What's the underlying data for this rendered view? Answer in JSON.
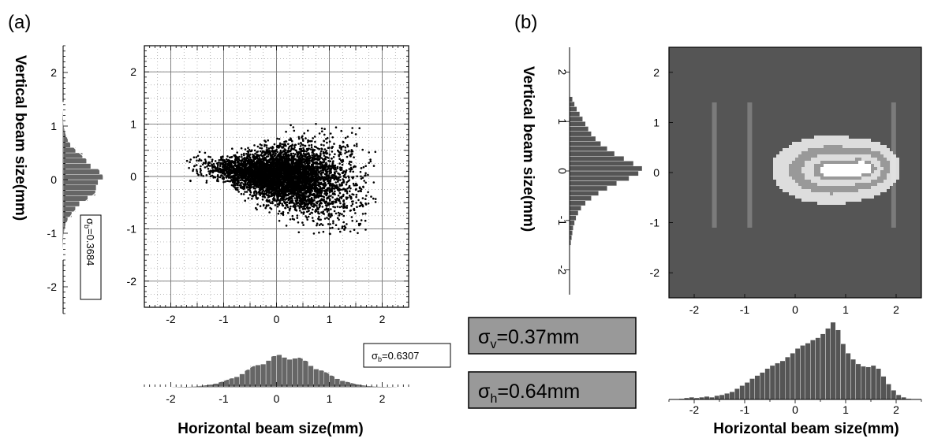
{
  "panel_a": {
    "label": "(a)",
    "ylabel": "Vertical beam size(mm)",
    "xlabel": "Horizontal beam size(mm)",
    "sigma_vertical": {
      "sym": "σ",
      "sub": "b",
      "text": "=0.3684"
    },
    "sigma_horizontal": {
      "sym": "σ",
      "sub": "b",
      "text": "=0.6307"
    }
  },
  "panel_b": {
    "label": "(b)",
    "ylabel": "Vertical beam size(mm)",
    "xlabel": "Horizontal beam size(mm)",
    "sigma_v": {
      "sym": "σ",
      "sub": "v",
      "text": "=0.37mm"
    },
    "sigma_h": {
      "sym": "σ",
      "sub": "h",
      "text": "=0.64mm"
    },
    "fill_color": "#555555",
    "contour_fills": [
      "#555555",
      "#999999",
      "#dddddd",
      "#ffffff"
    ]
  },
  "chart_data": [
    {
      "type": "scatter",
      "panel": "(a)",
      "xlabel": "Horizontal beam size(mm)",
      "ylabel": "Vertical beam size(mm)",
      "xlim": [
        -2.5,
        2.5
      ],
      "ylim": [
        -2.5,
        2.5
      ],
      "xticks": [
        -2,
        -1,
        0,
        1,
        2
      ],
      "yticks": [
        -2,
        -1,
        0,
        1,
        2
      ],
      "grid": true,
      "cloud": {
        "center": [
          0.15,
          0.0
        ],
        "sigma_x": 0.63,
        "sigma_y": 0.37,
        "x_range": [
          -1.7,
          1.9
        ],
        "y_range": [
          -1.1,
          1.4
        ]
      }
    },
    {
      "type": "bar",
      "panel": "(a)",
      "role": "vertical projection histogram",
      "orientation": "horizontal",
      "ylim": [
        -2.5,
        2.5
      ],
      "yticks": [
        -2,
        -1,
        0,
        1,
        2
      ],
      "bin_width": 0.1,
      "gauss_fit": {
        "mean": 0.0,
        "sigma": 0.3684
      },
      "annotation": "σb=0.3684"
    },
    {
      "type": "bar",
      "panel": "(a)",
      "role": "horizontal projection histogram",
      "xlim": [
        -2.5,
        2.5
      ],
      "xticks": [
        -2,
        -1,
        0,
        1,
        2
      ],
      "bin_width": 0.1,
      "gauss_fit": {
        "mean": 0.15,
        "sigma": 0.6307
      },
      "annotation": "σb=0.6307"
    },
    {
      "type": "heatmap",
      "panel": "(b)",
      "xlabel": "Horizontal beam size(mm)",
      "ylabel": "Vertical beam size(mm)",
      "xlim": [
        -2.5,
        2.5
      ],
      "ylim": [
        -2.5,
        2.5
      ],
      "xticks": [
        -2,
        -1,
        0,
        1,
        2
      ],
      "yticks": [
        -2,
        -1,
        0,
        1,
        2
      ],
      "contour_levels": [
        0.15,
        0.4,
        0.65,
        0.85,
        0.95
      ],
      "peaks": [
        {
          "x": 0.7,
          "y": 0.05,
          "amp": 1.0,
          "sx": 0.6,
          "sy": 0.35
        },
        {
          "x": 1.5,
          "y": 0.1,
          "amp": 0.55,
          "sx": 0.3,
          "sy": 0.25
        }
      ]
    },
    {
      "type": "bar",
      "panel": "(b)",
      "role": "vertical projection histogram",
      "orientation": "horizontal",
      "ylim": [
        -2.5,
        2.5
      ],
      "yticks": [
        -2,
        -1,
        0,
        1,
        2
      ],
      "bin_width": 0.1,
      "bins_center": [
        -1.45,
        -1.35,
        -1.25,
        -1.15,
        -1.05,
        -0.95,
        -0.85,
        -0.75,
        -0.65,
        -0.55,
        -0.45,
        -0.35,
        -0.25,
        -0.15,
        -0.05,
        0.05,
        0.15,
        0.25,
        0.35,
        0.45,
        0.55,
        0.65,
        0.75,
        0.85,
        0.95,
        1.05,
        1.15,
        1.25,
        1.35,
        1.45
      ],
      "values": [
        0.02,
        0.03,
        0.04,
        0.05,
        0.07,
        0.09,
        0.12,
        0.16,
        0.22,
        0.3,
        0.4,
        0.52,
        0.65,
        0.82,
        0.95,
        1.0,
        0.88,
        0.75,
        0.62,
        0.52,
        0.43,
        0.36,
        0.3,
        0.26,
        0.22,
        0.18,
        0.14,
        0.1,
        0.07,
        0.04
      ]
    },
    {
      "type": "bar",
      "panel": "(b)",
      "role": "horizontal projection histogram",
      "xlim": [
        -2.5,
        2.5
      ],
      "xticks": [
        -2,
        -1,
        0,
        1,
        2
      ],
      "bin_width": 0.1,
      "bins_center": [
        -2.25,
        -2.15,
        -2.05,
        -1.95,
        -1.85,
        -1.75,
        -1.65,
        -1.55,
        -1.45,
        -1.35,
        -1.25,
        -1.15,
        -1.05,
        -0.95,
        -0.85,
        -0.75,
        -0.65,
        -0.55,
        -0.45,
        -0.35,
        -0.25,
        -0.15,
        -0.05,
        0.05,
        0.15,
        0.25,
        0.35,
        0.45,
        0.55,
        0.65,
        0.75,
        0.85,
        0.95,
        1.05,
        1.15,
        1.25,
        1.35,
        1.45,
        1.55,
        1.65,
        1.75,
        1.85,
        1.95,
        2.05,
        2.15,
        2.25
      ],
      "values": [
        0.01,
        0.02,
        0.03,
        0.02,
        0.03,
        0.04,
        0.03,
        0.05,
        0.06,
        0.08,
        0.1,
        0.14,
        0.18,
        0.22,
        0.27,
        0.31,
        0.35,
        0.4,
        0.44,
        0.47,
        0.5,
        0.55,
        0.6,
        0.66,
        0.7,
        0.73,
        0.77,
        0.8,
        0.85,
        0.92,
        1.0,
        0.9,
        0.72,
        0.6,
        0.52,
        0.46,
        0.43,
        0.42,
        0.44,
        0.4,
        0.3,
        0.2,
        0.12,
        0.06,
        0.03,
        0.01
      ]
    }
  ]
}
